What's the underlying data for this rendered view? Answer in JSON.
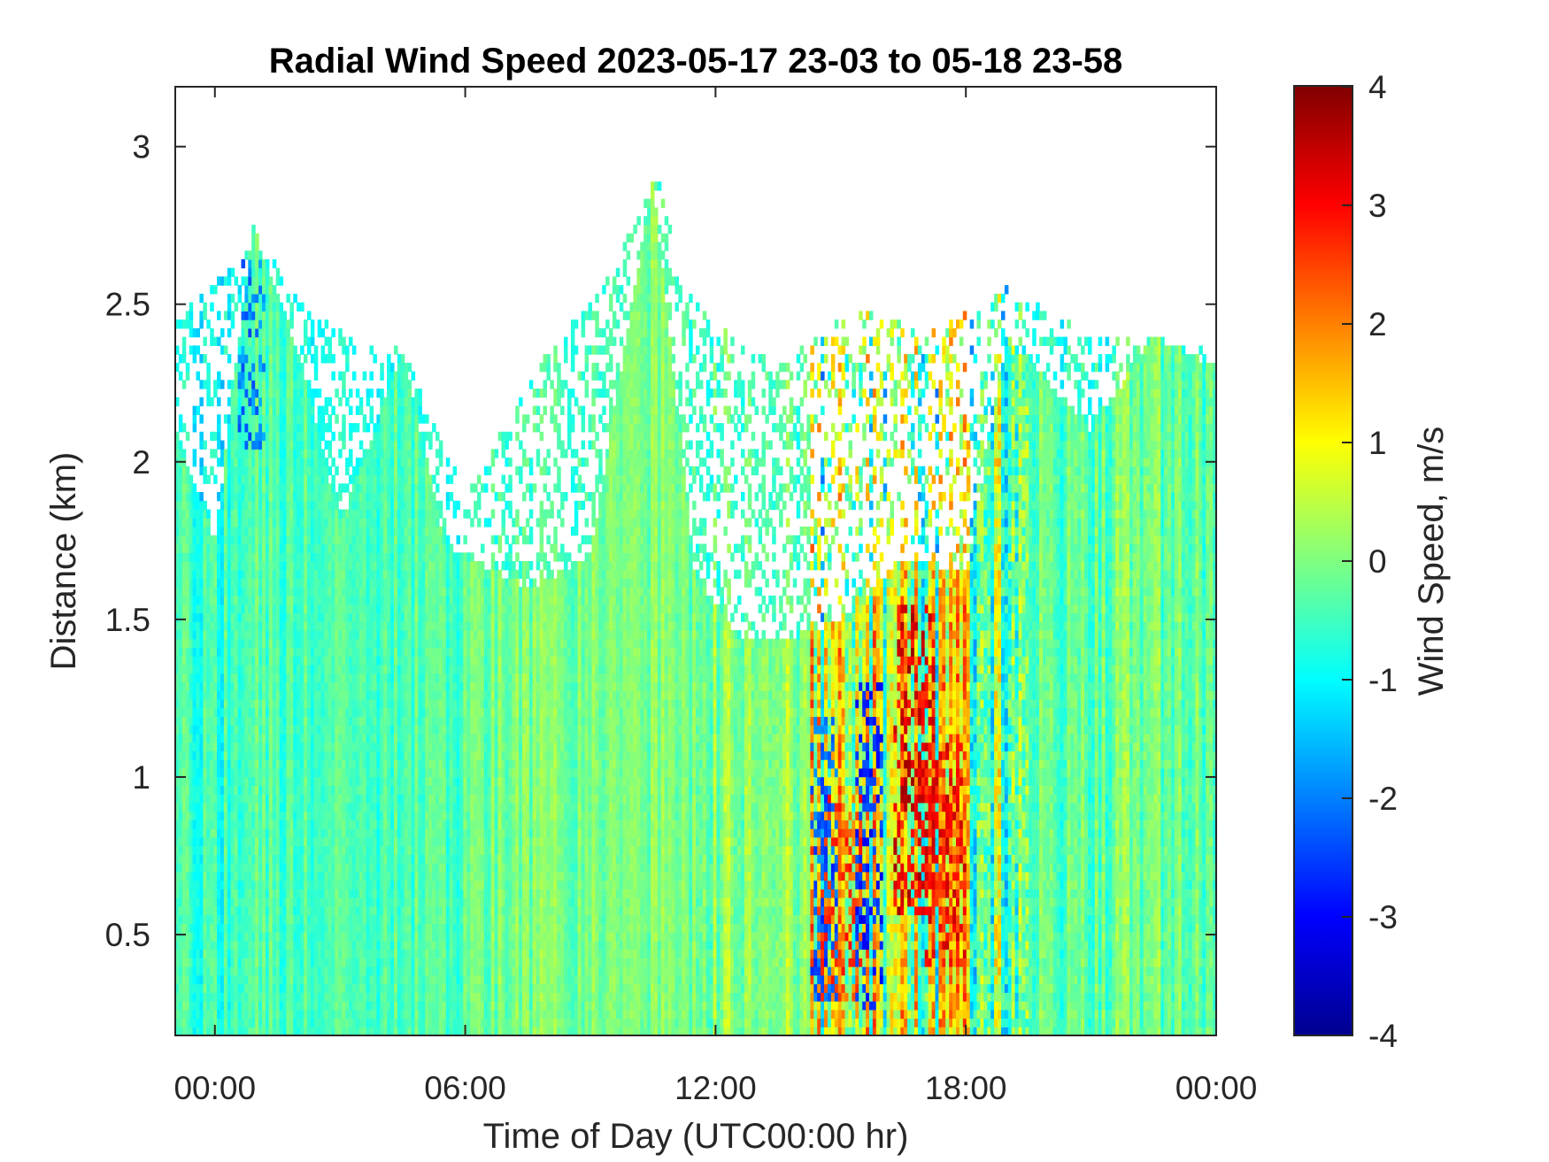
{
  "chart_data": {
    "type": "heatmap",
    "title": "Radial Wind Speed 2023-05-17 23-03 to 05-18 23-58",
    "xlabel": "Time of Day (UTC00:00 hr)",
    "ylabel": "Distance (km)",
    "colorbar_label": "Wind Speed, m/s",
    "colormap": "jet",
    "x_unit": "hours since 2023-05-18 00:00 UTC",
    "xlim": [
      -0.95,
      24.0
    ],
    "ylim": [
      0.18,
      3.19
    ],
    "clim": [
      -4,
      4
    ],
    "x_ticks": [
      {
        "value": 0,
        "label": "00:00"
      },
      {
        "value": 6,
        "label": "06:00"
      },
      {
        "value": 12,
        "label": "12:00"
      },
      {
        "value": 18,
        "label": "18:00"
      },
      {
        "value": 24,
        "label": "00:00"
      }
    ],
    "y_ticks": [
      {
        "value": 0.5,
        "label": "0.5"
      },
      {
        "value": 1,
        "label": "1"
      },
      {
        "value": 1.5,
        "label": "1.5"
      },
      {
        "value": 2,
        "label": "2"
      },
      {
        "value": 2.5,
        "label": "2.5"
      },
      {
        "value": 3,
        "label": "3"
      }
    ],
    "colorbar_ticks": [
      {
        "value": 4,
        "label": "4"
      },
      {
        "value": 3,
        "label": "3"
      },
      {
        "value": 2,
        "label": "2"
      },
      {
        "value": 1,
        "label": "1"
      },
      {
        "value": 0,
        "label": "0"
      },
      {
        "value": -1,
        "label": "-1"
      },
      {
        "value": -2,
        "label": "-2"
      },
      {
        "value": -3,
        "label": "-3"
      },
      {
        "value": -4,
        "label": "-4"
      }
    ],
    "valid_data_top_km": [
      [
        -0.95,
        2.1
      ],
      [
        0,
        1.75
      ],
      [
        0.9,
        2.75
      ],
      [
        2,
        2.35
      ],
      [
        3,
        1.8
      ],
      [
        4.5,
        2.35
      ],
      [
        5.5,
        1.75
      ],
      [
        6,
        1.7
      ],
      [
        7.5,
        1.6
      ],
      [
        9,
        1.7
      ],
      [
        10.5,
        2.9
      ],
      [
        11.5,
        1.65
      ],
      [
        12.5,
        1.45
      ],
      [
        14,
        1.45
      ],
      [
        15,
        1.5
      ],
      [
        16.5,
        1.7
      ],
      [
        18,
        1.65
      ],
      [
        19,
        2.4
      ],
      [
        21,
        2.1
      ],
      [
        22.5,
        2.4
      ],
      [
        24,
        2.3
      ]
    ],
    "scattered_returns_top_km": [
      [
        -0.95,
        2.45
      ],
      [
        1,
        2.7
      ],
      [
        2.5,
        2.45
      ],
      [
        4.5,
        2.35
      ],
      [
        6,
        1.9
      ],
      [
        8,
        2.35
      ],
      [
        9.3,
        2.55
      ],
      [
        10.6,
        2.9
      ],
      [
        11.5,
        2.5
      ],
      [
        13.5,
        2.3
      ],
      [
        15.5,
        2.5
      ],
      [
        17,
        2.4
      ],
      [
        19,
        2.55
      ],
      [
        21,
        2.4
      ],
      [
        22.5,
        2.4
      ],
      [
        24,
        2.35
      ]
    ],
    "velocity_regimes": [
      {
        "x_start": -0.95,
        "x_end": 1.0,
        "mean": -0.6,
        "spread": 0.6
      },
      {
        "x_start": 1.0,
        "x_end": 6.0,
        "mean": -0.4,
        "spread": 0.5
      },
      {
        "x_start": 6.0,
        "x_end": 11.5,
        "mean": -0.1,
        "spread": 0.5
      },
      {
        "x_start": 11.5,
        "x_end": 14.3,
        "mean": 0.1,
        "spread": 0.7
      },
      {
        "x_start": 14.3,
        "x_end": 19.5,
        "mean": 0.5,
        "spread": 2.0
      },
      {
        "x_start": 19.5,
        "x_end": 24.0,
        "mean": -0.2,
        "spread": 0.7
      }
    ],
    "strong_updraft_cores": [
      {
        "x_center": 16.8,
        "y_bottom": 0.55,
        "y_top": 1.55,
        "value": 3.8
      },
      {
        "x_center": 15.0,
        "y_bottom": 0.3,
        "y_top": 0.95,
        "value": 3.0
      },
      {
        "x_center": 17.5,
        "y_bottom": 0.4,
        "y_top": 1.1,
        "value": 3.5
      }
    ],
    "strong_downdraft_cores": [
      {
        "x_center": 15.7,
        "y_bottom": 0.25,
        "y_top": 1.3,
        "value": -3.2
      },
      {
        "x_center": 14.6,
        "y_bottom": 0.3,
        "y_top": 1.2,
        "value": -2.8
      },
      {
        "x_center": 0.9,
        "y_bottom": 2.05,
        "y_top": 2.7,
        "value": -2.5
      }
    ]
  }
}
